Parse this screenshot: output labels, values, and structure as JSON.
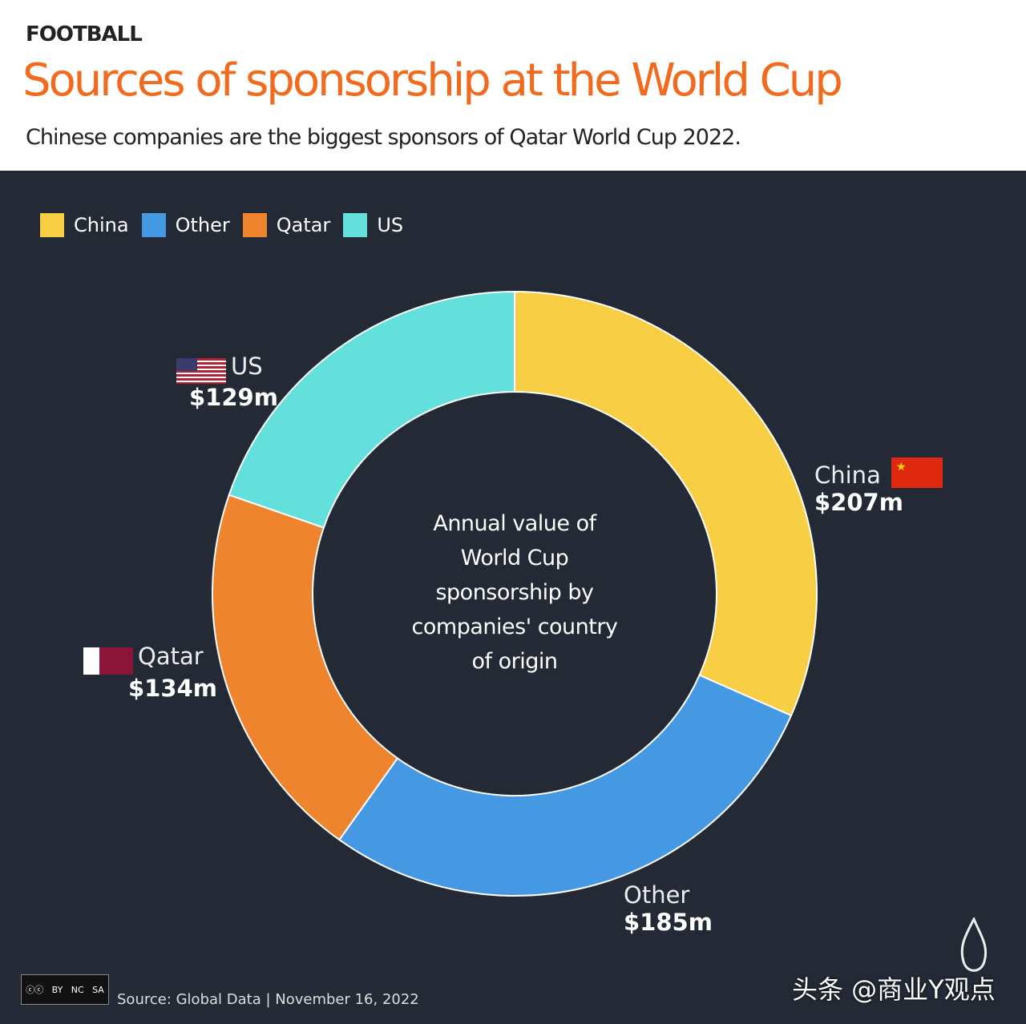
{
  "header": {
    "kicker": "FOOTBALL",
    "title": "Sources of sponsorship at the World Cup",
    "subtitle": "Chinese companies are the biggest sponsors of Qatar World Cup 2022."
  },
  "chart_data": {
    "type": "pie",
    "donut": true,
    "start": "top",
    "direction": "clockwise",
    "center_text": [
      "Annual value of",
      "World Cup",
      "sponsorship by",
      "companies' country",
      "of origin"
    ],
    "legend_placement": "top-left",
    "legend": [
      "China",
      "Other",
      "Qatar",
      "US"
    ],
    "slices": [
      {
        "name": "China",
        "value": 207,
        "label": "$207m",
        "color": "#f8ce44"
      },
      {
        "name": "Other",
        "value": 185,
        "label": "$185m",
        "color": "#4599e3"
      },
      {
        "name": "Qatar",
        "value": 134,
        "label": "$134m",
        "color": "#ee842e"
      },
      {
        "name": "US",
        "value": 129,
        "label": "$129m",
        "color": "#63e0db"
      }
    ]
  },
  "footer": {
    "license": [
      "BY",
      "NC",
      "SA"
    ],
    "source": "Source:  Global Data  |  November 16, 2022",
    "watermark": "头条 @商业Y观点"
  },
  "colors": {
    "background": "#232a36",
    "title": "#f26a1e"
  }
}
